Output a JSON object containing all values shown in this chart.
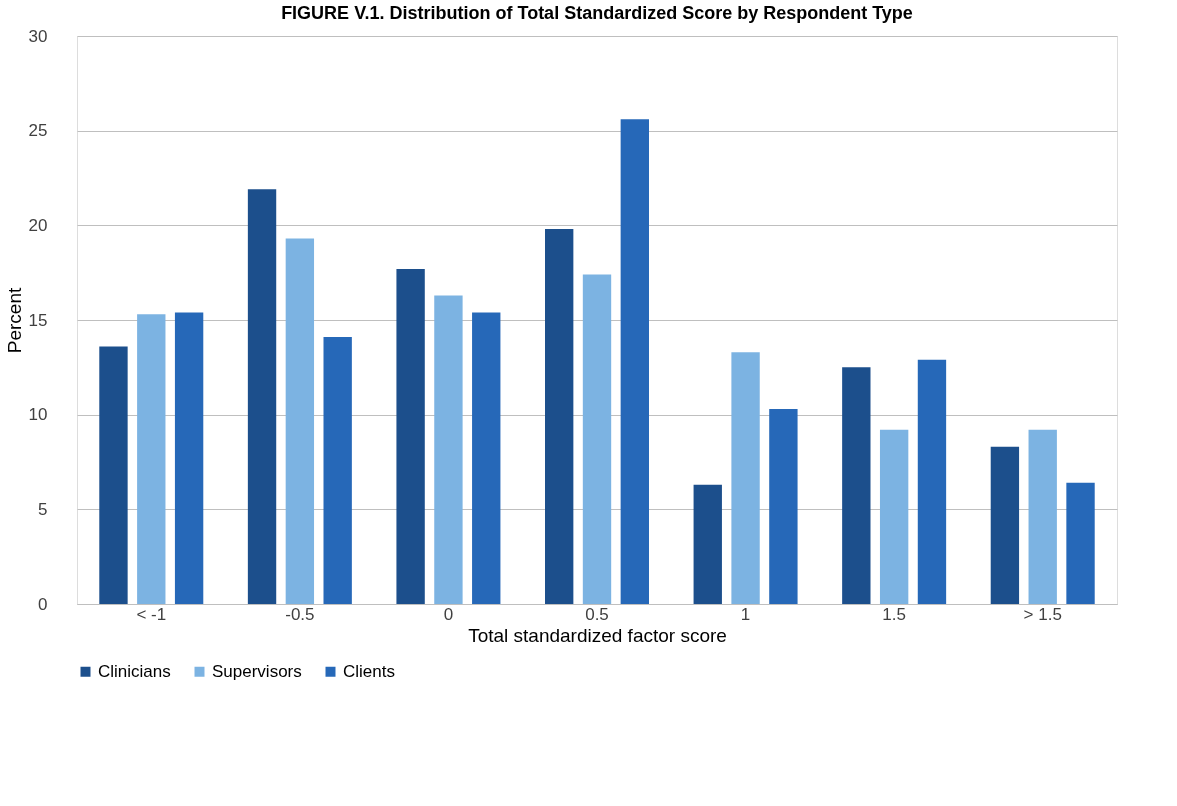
{
  "chart_data": {
    "type": "bar",
    "title": "FIGURE V.1. Distribution of Total Standardized Score by Respondent Type",
    "xlabel": "Total standardized factor score",
    "ylabel": "Percent",
    "categories": [
      "< -1",
      "-0.5",
      "0",
      "0.5",
      "1",
      "1.5",
      "> 1.5"
    ],
    "series": [
      {
        "name": "Clinicians",
        "color": "#1c4f8c",
        "values": [
          13.6,
          21.9,
          17.7,
          19.8,
          6.3,
          12.5,
          8.3
        ]
      },
      {
        "name": "Supervisors",
        "color": "#7cb3e2",
        "values": [
          15.3,
          19.3,
          16.3,
          17.4,
          13.3,
          9.2,
          9.2
        ]
      },
      {
        "name": "Clients",
        "color": "#2668b8",
        "values": [
          15.4,
          14.1,
          15.4,
          25.6,
          10.3,
          12.9,
          6.4
        ]
      }
    ],
    "ylim": [
      0,
      30
    ],
    "yticks": [
      0,
      5,
      10,
      15,
      20,
      25,
      30
    ],
    "grid": "y",
    "legend": "bottom"
  }
}
